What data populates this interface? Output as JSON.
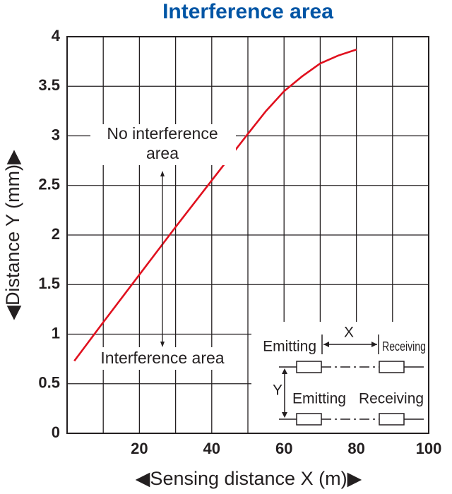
{
  "chart_data": {
    "type": "line",
    "title": "Interference area",
    "x_label": "◀Sensing distance X (m)▶",
    "y_label": "◀Distance Y (mm)▶",
    "x": [
      2,
      10,
      20,
      30,
      40,
      50,
      55,
      60,
      65,
      70,
      75,
      80
    ],
    "series": [
      {
        "color": "#e0101e",
        "values": [
          0.73,
          1.12,
          1.6,
          2.08,
          2.55,
          3.02,
          3.25,
          3.45,
          3.6,
          3.73,
          3.81,
          3.87
        ]
      }
    ],
    "xlim": [
      0,
      100
    ],
    "xticks": [
      20,
      40,
      60,
      80,
      100
    ],
    "x_minor_ticks": [
      10,
      30,
      50,
      70,
      90
    ],
    "ylim": [
      0,
      4
    ],
    "yticks": [
      0,
      0.5,
      1,
      1.5,
      2,
      2.5,
      3,
      3.5,
      4
    ],
    "grid": true,
    "annotations": {
      "upper": [
        "No interference",
        "area"
      ],
      "lower": "Interference area"
    }
  },
  "inset": {
    "top_left": "Emitting",
    "x_label": "X",
    "top_right": "Receiving",
    "y_label": "Y",
    "bottom_left": "Emitting",
    "bottom_right": "Receiving"
  }
}
